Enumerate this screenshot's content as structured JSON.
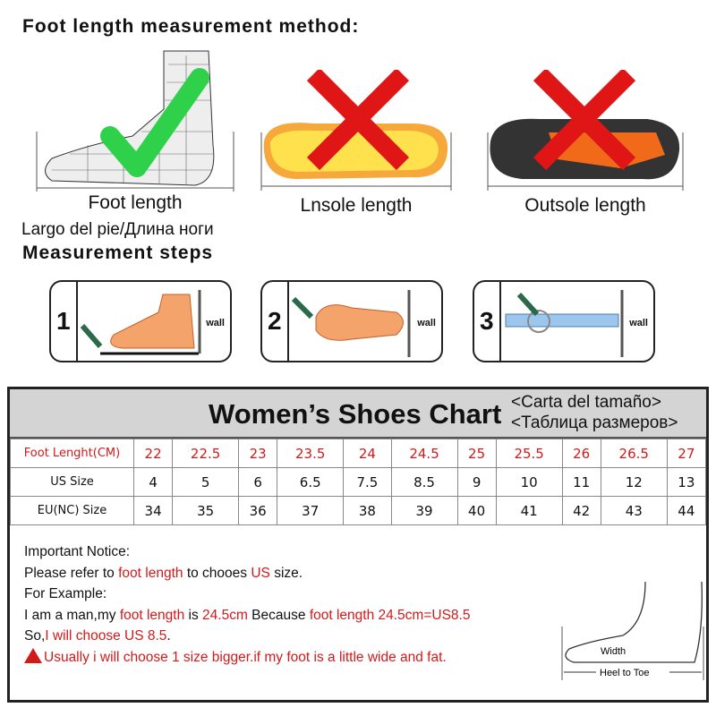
{
  "title": "Foot length measurement method:",
  "methods": [
    {
      "label": "Foot length",
      "verdict": "correct",
      "icon": "check-icon"
    },
    {
      "label": "Lnsole length",
      "verdict": "wrong",
      "icon": "cross-icon"
    },
    {
      "label": "Outsole length",
      "verdict": "wrong",
      "icon": "cross-icon"
    }
  ],
  "foot_length_translation": "Largo del pie/Длина ноги",
  "steps_title": "Measurement steps",
  "steps": [
    {
      "num": "1",
      "wall": "wall"
    },
    {
      "num": "2",
      "wall": "wall"
    },
    {
      "num": "3",
      "wall": "wall"
    }
  ],
  "chart": {
    "title": "Women’s Shoes Chart",
    "subtitle_es": "<Carta del tamaño>",
    "subtitle_ru": "<Таблица размеров>",
    "rows": [
      {
        "header": "Foot Lenght(CM)",
        "values": [
          "22",
          "22.5",
          "23",
          "23.5",
          "24",
          "24.5",
          "25",
          "25.5",
          "26",
          "26.5",
          "27"
        ]
      },
      {
        "header": "US Size",
        "values": [
          "4",
          "5",
          "6",
          "6.5",
          "7.5",
          "8.5",
          "9",
          "10",
          "11",
          "12",
          "13"
        ]
      },
      {
        "header": "EU(NC) Size",
        "values": [
          "34",
          "35",
          "36",
          "37",
          "38",
          "39",
          "40",
          "41",
          "42",
          "43",
          "44"
        ]
      }
    ]
  },
  "notice": {
    "heading": "Important Notice:",
    "line1": [
      "Please refer to ",
      "foot length",
      " to chooes ",
      "US",
      " size."
    ],
    "example": "For Example:",
    "line2": [
      "I am a man,my ",
      "foot length",
      " is ",
      "24.5cm",
      " Because ",
      "foot length 24.5cm=US8.5"
    ],
    "line3": [
      "So,",
      "I will choose US 8.5",
      "."
    ],
    "warning": "Usually i will choose 1 size bigger.if my foot is a little wide and fat."
  },
  "diagram": {
    "width": "Width",
    "heel_to_toe": "Heel to Toe"
  },
  "colors": {
    "red": "#d21a1a",
    "check": "#2fd04a",
    "cross": "#e01515",
    "header_bg": "#d4d4d4"
  }
}
